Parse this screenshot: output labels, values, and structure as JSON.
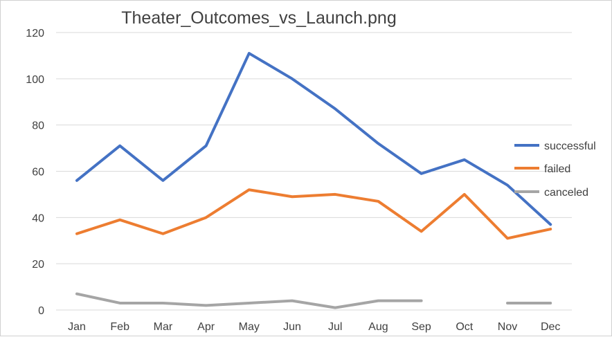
{
  "chart_data": {
    "type": "line",
    "title": "Theater_Outcomes_vs_Launch.png",
    "xlabel": "",
    "ylabel": "",
    "categories": [
      "Jan",
      "Feb",
      "Mar",
      "Apr",
      "May",
      "Jun",
      "Jul",
      "Aug",
      "Sep",
      "Oct",
      "Nov",
      "Dec"
    ],
    "ylim": [
      0,
      120
    ],
    "yticks": [
      "0",
      "20",
      "40",
      "60",
      "80",
      "100",
      "120"
    ],
    "grid": true,
    "legend_position": "right",
    "series": [
      {
        "name": "successful",
        "color": "#4472C4",
        "values": [
          56,
          71,
          56,
          71,
          111,
          100,
          87,
          72,
          59,
          65,
          54,
          37
        ]
      },
      {
        "name": "failed",
        "color": "#ED7D31",
        "values": [
          33,
          39,
          33,
          40,
          52,
          49,
          50,
          47,
          34,
          50,
          31,
          35
        ]
      },
      {
        "name": "canceled",
        "color": "#A5A5A5",
        "values": [
          7,
          3,
          3,
          2,
          3,
          4,
          1,
          4,
          4,
          null,
          3,
          3
        ]
      }
    ]
  }
}
